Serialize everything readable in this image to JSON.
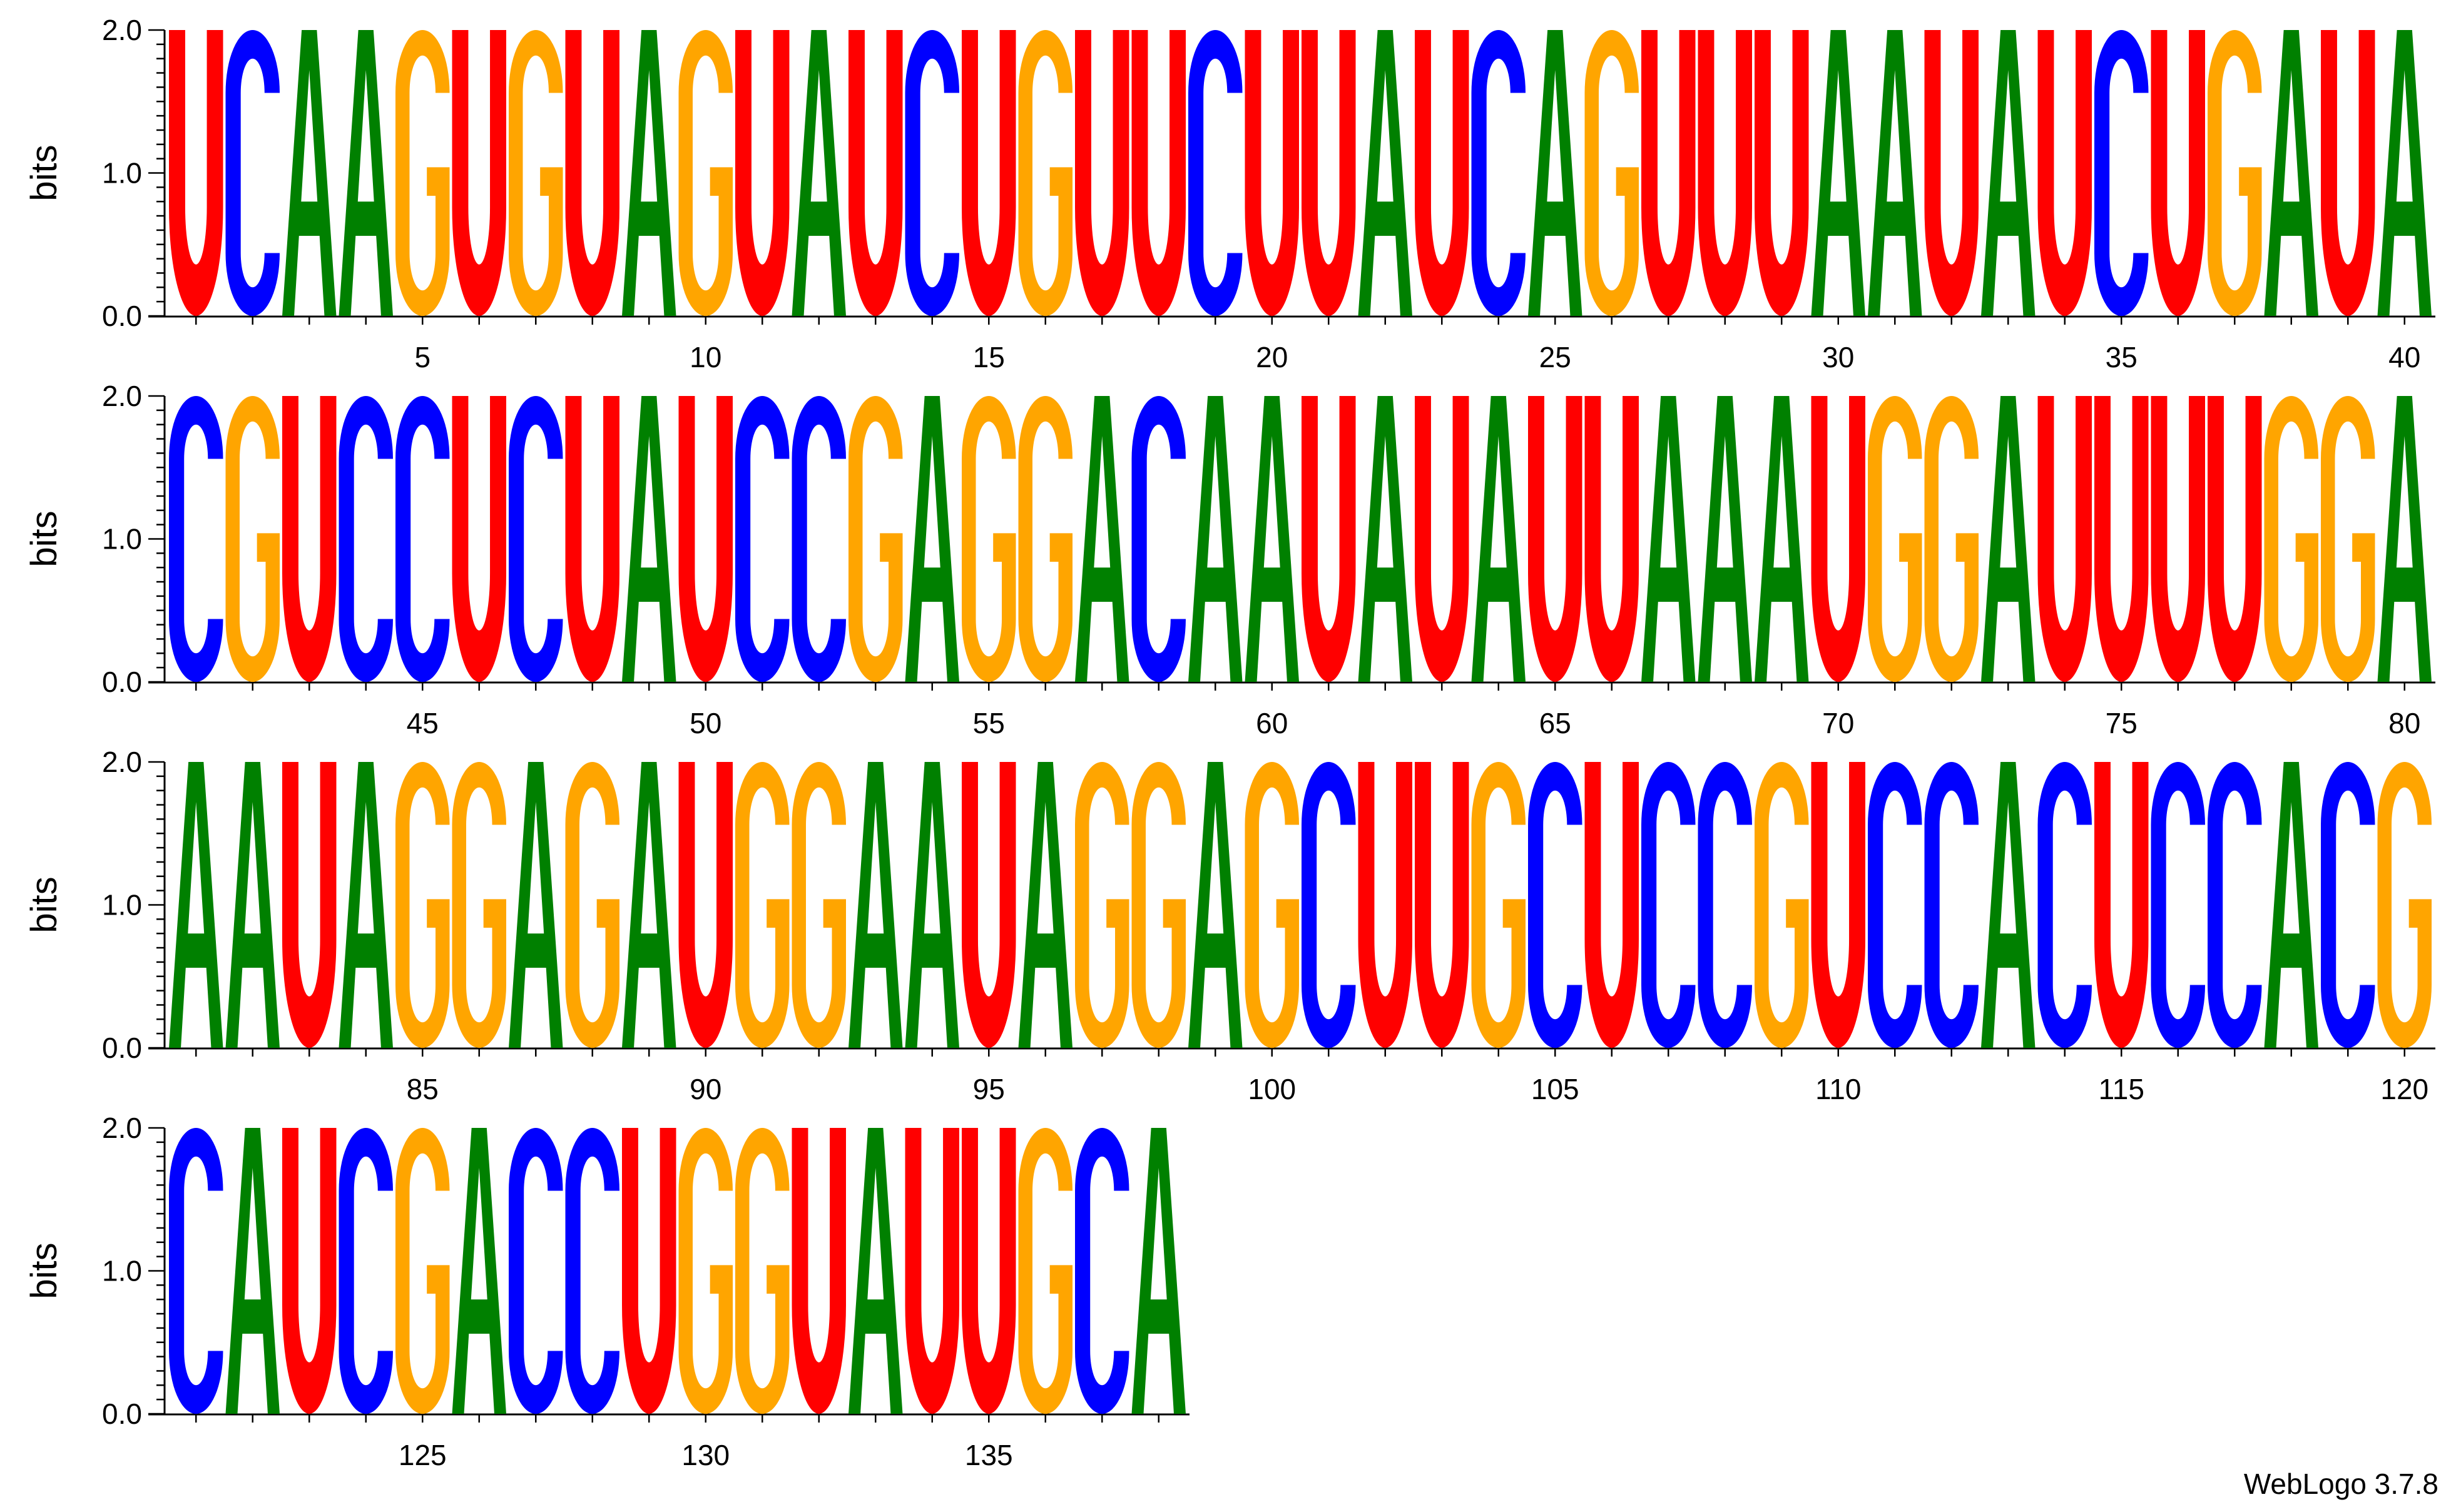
{
  "chart_data": {
    "type": "sequence-logo",
    "ylabel": "bits",
    "ylim": [
      0,
      2
    ],
    "y_ticks": [
      "0.0",
      "1.0",
      "2.0"
    ],
    "alphabet_colors": {
      "A": "#008000",
      "C": "#0000ff",
      "G": "#ffa500",
      "U": "#ff0000"
    },
    "sequence": "UCAAGUGUAGUAUCUGUUCUUAUCAGUUUAAUAUCUGAUACGUCCUCUAUCCGAGGACAAUAUAUUAAAUGGAUUUUGGAAAUAGGAGAUGGAAUAGGAGCUUGCUCCGUCCACUCCACGCAUCGACCUGGUAUUGCA",
    "residues_per_row": 40,
    "x_ticks": [
      [
        "5",
        "10",
        "15",
        "20",
        "25",
        "30",
        "35",
        "40"
      ],
      [
        "45",
        "50",
        "55",
        "60",
        "65",
        "70",
        "75",
        "80"
      ],
      [
        "85",
        "90",
        "95",
        "100",
        "105",
        "110",
        "115",
        "120"
      ],
      [
        "125",
        "130",
        "135"
      ]
    ]
  },
  "footer": {
    "credit": "WebLogo 3.7.8"
  }
}
